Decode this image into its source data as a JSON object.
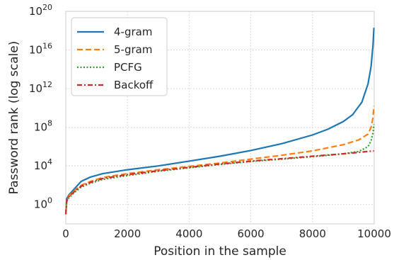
{
  "chart_data": {
    "type": "line",
    "xlabel": "Position in the sample",
    "ylabel": "Password rank (log scale)",
    "xlim": [
      0,
      10000
    ],
    "ylim_log10": [
      -2,
      20
    ],
    "y_scale": "log",
    "grid": true,
    "legend_placement": "top-left",
    "x_ticks": [
      {
        "value": 0,
        "label": "0"
      },
      {
        "value": 2000,
        "label": "2000"
      },
      {
        "value": 4000,
        "label": "4000"
      },
      {
        "value": 6000,
        "label": "6000"
      },
      {
        "value": 8000,
        "label": "8000"
      },
      {
        "value": 10000,
        "label": "10000"
      }
    ],
    "y_ticks": [
      {
        "exp": 0,
        "label_base": "10",
        "label_exp": "0"
      },
      {
        "exp": 4,
        "label_base": "10",
        "label_exp": "4"
      },
      {
        "exp": 8,
        "label_base": "10",
        "label_exp": "8"
      },
      {
        "exp": 12,
        "label_base": "10",
        "label_exp": "12"
      },
      {
        "exp": 16,
        "label_base": "10",
        "label_exp": "16"
      },
      {
        "exp": 20,
        "label_base": "10",
        "label_exp": "20"
      }
    ],
    "series": [
      {
        "name": "4-gram",
        "color": "#1f77b4",
        "dash": "solid",
        "points": [
          [
            0,
            -1.0
          ],
          [
            30,
            0.6
          ],
          [
            100,
            1.0
          ],
          [
            300,
            1.7
          ],
          [
            500,
            2.4
          ],
          [
            800,
            2.85
          ],
          [
            1200,
            3.2
          ],
          [
            2000,
            3.6
          ],
          [
            3000,
            4.0
          ],
          [
            4000,
            4.5
          ],
          [
            5000,
            5.0
          ],
          [
            6000,
            5.6
          ],
          [
            7000,
            6.3
          ],
          [
            8000,
            7.2
          ],
          [
            8500,
            7.8
          ],
          [
            9000,
            8.6
          ],
          [
            9300,
            9.3
          ],
          [
            9600,
            10.6
          ],
          [
            9800,
            12.5
          ],
          [
            9900,
            14.3
          ],
          [
            9960,
            16.5
          ],
          [
            9990,
            18.3
          ]
        ]
      },
      {
        "name": "5-gram",
        "color": "#ff7f0e",
        "dash": "dashed",
        "points": [
          [
            0,
            -1.0
          ],
          [
            30,
            0.4
          ],
          [
            100,
            0.9
          ],
          [
            300,
            1.5
          ],
          [
            500,
            2.0
          ],
          [
            800,
            2.4
          ],
          [
            1200,
            2.8
          ],
          [
            2000,
            3.2
          ],
          [
            3000,
            3.6
          ],
          [
            4000,
            3.95
          ],
          [
            5000,
            4.3
          ],
          [
            6000,
            4.7
          ],
          [
            7000,
            5.1
          ],
          [
            8000,
            5.55
          ],
          [
            9000,
            6.2
          ],
          [
            9500,
            6.7
          ],
          [
            9800,
            7.3
          ],
          [
            9900,
            8.0
          ],
          [
            9960,
            9.0
          ],
          [
            9990,
            10.2
          ]
        ]
      },
      {
        "name": "PCFG",
        "color": "#2ca02c",
        "dash": "dotted",
        "points": [
          [
            0,
            -1.0
          ],
          [
            30,
            0.3
          ],
          [
            100,
            0.7
          ],
          [
            300,
            1.3
          ],
          [
            500,
            1.8
          ],
          [
            800,
            2.2
          ],
          [
            1200,
            2.6
          ],
          [
            2000,
            3.0
          ],
          [
            3000,
            3.45
          ],
          [
            4000,
            3.8
          ],
          [
            5000,
            4.15
          ],
          [
            6000,
            4.45
          ],
          [
            7000,
            4.7
          ],
          [
            8000,
            4.95
          ],
          [
            9000,
            5.25
          ],
          [
            9500,
            5.5
          ],
          [
            9800,
            6.0
          ],
          [
            9900,
            6.6
          ],
          [
            9960,
            7.4
          ],
          [
            9990,
            8.3
          ]
        ]
      },
      {
        "name": "Backoff",
        "color": "#d62728",
        "dash": "dashdot",
        "points": [
          [
            0,
            -1.0
          ],
          [
            30,
            0.4
          ],
          [
            100,
            0.8
          ],
          [
            300,
            1.4
          ],
          [
            500,
            1.9
          ],
          [
            800,
            2.3
          ],
          [
            1200,
            2.7
          ],
          [
            2000,
            3.1
          ],
          [
            3000,
            3.5
          ],
          [
            4000,
            3.85
          ],
          [
            5000,
            4.2
          ],
          [
            6000,
            4.5
          ],
          [
            7000,
            4.75
          ],
          [
            8000,
            5.0
          ],
          [
            9000,
            5.25
          ],
          [
            9500,
            5.4
          ],
          [
            9800,
            5.5
          ],
          [
            9990,
            5.55
          ]
        ]
      }
    ]
  }
}
